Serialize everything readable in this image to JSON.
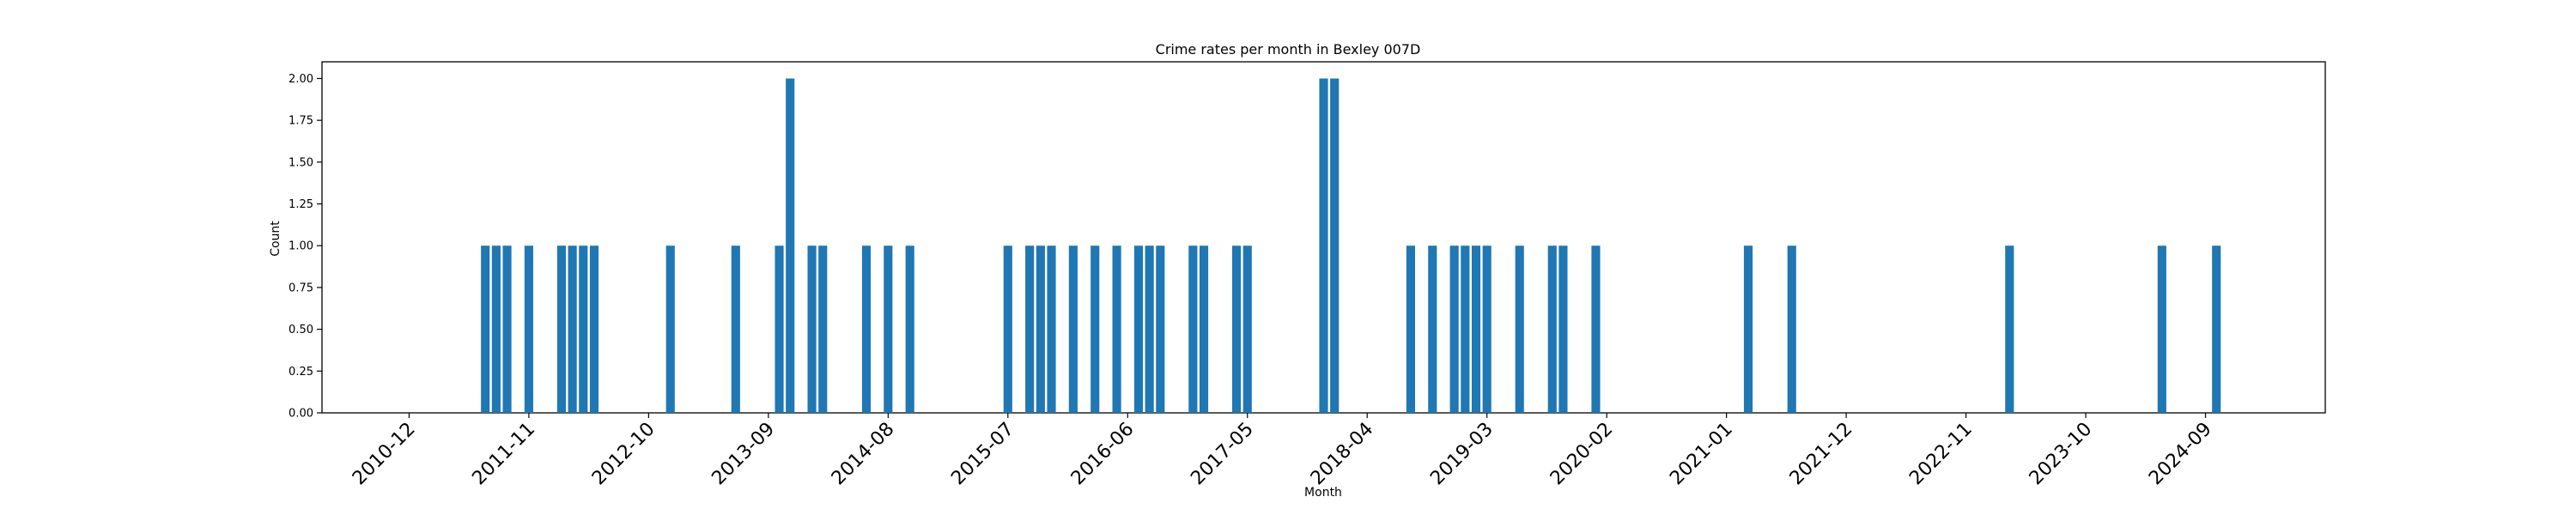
{
  "chart_data": {
    "type": "bar",
    "title": "Crime rates per month in Bexley 007D",
    "xlabel": "Month",
    "ylabel": "Count",
    "ylim": [
      0,
      2.1
    ],
    "yticks": [
      "0.00",
      "0.25",
      "0.50",
      "0.75",
      "1.00",
      "1.25",
      "1.50",
      "1.75",
      "2.00"
    ],
    "xticks": [
      "2010-12",
      "2011-11",
      "2012-10",
      "2013-09",
      "2014-08",
      "2015-07",
      "2016-06",
      "2017-05",
      "2018-04",
      "2019-03",
      "2020-02",
      "2021-01",
      "2021-12",
      "2022-11",
      "2023-10",
      "2024-09"
    ],
    "xlim": [
      "2010-04",
      "2025-08"
    ],
    "bar_color": "#1f77b4",
    "series": [
      {
        "x": [
          "2011-07",
          "2011-08",
          "2011-09",
          "2011-11",
          "2012-02",
          "2012-03",
          "2012-04",
          "2012-05",
          "2012-12",
          "2013-06",
          "2013-10",
          "2013-11",
          "2014-01",
          "2014-02",
          "2014-06",
          "2014-08",
          "2014-10",
          "2015-07",
          "2015-09",
          "2015-10",
          "2015-11",
          "2016-01",
          "2016-03",
          "2016-05",
          "2016-07",
          "2016-08",
          "2016-09",
          "2016-12",
          "2017-01",
          "2017-04",
          "2017-05",
          "2017-12",
          "2018-01",
          "2018-08",
          "2018-10",
          "2018-12",
          "2019-01",
          "2019-02",
          "2019-03",
          "2019-06",
          "2019-09",
          "2019-10",
          "2020-01",
          "2021-03",
          "2021-07",
          "2023-03",
          "2024-05",
          "2024-10"
        ],
        "values": [
          1,
          1,
          1,
          1,
          1,
          1,
          1,
          1,
          1,
          1,
          1,
          2,
          1,
          1,
          1,
          1,
          1,
          1,
          1,
          1,
          1,
          1,
          1,
          1,
          1,
          1,
          1,
          1,
          1,
          1,
          1,
          2,
          2,
          1,
          1,
          1,
          1,
          1,
          1,
          1,
          1,
          1,
          1,
          1,
          1,
          1,
          1,
          1
        ]
      }
    ]
  }
}
